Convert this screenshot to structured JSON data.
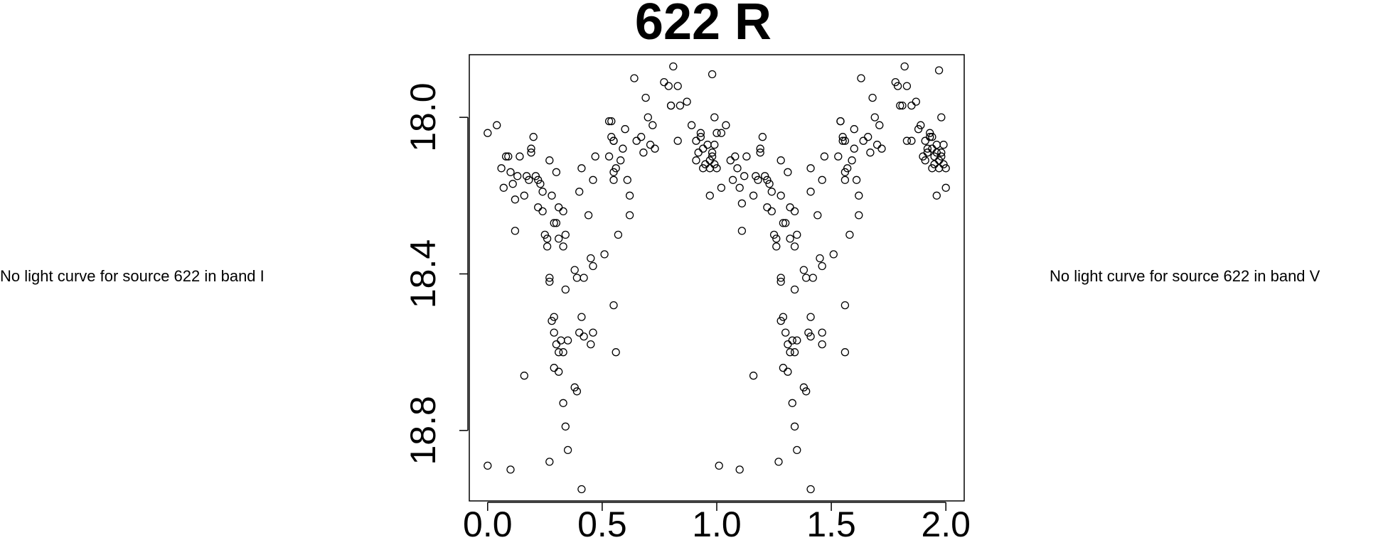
{
  "notes": {
    "left": "No light curve for source 622 in band I",
    "right": "No light curve for source 622 in band V"
  },
  "chart_data": {
    "type": "scatter",
    "title": "622 R",
    "xlabel": "",
    "ylabel": "",
    "xlim": [
      -0.08,
      2.08
    ],
    "ylim": [
      18.98,
      17.84
    ],
    "y_reversed": true,
    "grid": false,
    "marker": "open-circle",
    "x_ticks": [
      {
        "value": 0.0,
        "label": "0.0"
      },
      {
        "value": 0.5,
        "label": "0.5"
      },
      {
        "value": 1.0,
        "label": "1.0"
      },
      {
        "value": 1.5,
        "label": "1.5"
      },
      {
        "value": 2.0,
        "label": "2.0"
      }
    ],
    "y_ticks": [
      {
        "value": 18.0,
        "label": "18.0"
      },
      {
        "value": 18.4,
        "label": "18.4"
      },
      {
        "value": 18.8,
        "label": "18.8"
      }
    ],
    "points": [
      [
        0.0,
        18.04
      ],
      [
        0.04,
        18.02
      ],
      [
        0.06,
        18.13
      ],
      [
        0.07,
        18.18
      ],
      [
        0.08,
        18.1
      ],
      [
        0.09,
        18.1
      ],
      [
        0.1,
        18.14
      ],
      [
        0.11,
        18.17
      ],
      [
        0.12,
        18.21
      ],
      [
        0.12,
        18.29
      ],
      [
        0.13,
        18.15
      ],
      [
        0.14,
        18.1
      ],
      [
        0.16,
        18.2
      ],
      [
        0.17,
        18.15
      ],
      [
        0.18,
        18.16
      ],
      [
        0.19,
        18.09
      ],
      [
        0.19,
        18.08
      ],
      [
        0.2,
        18.05
      ],
      [
        0.21,
        18.15
      ],
      [
        0.22,
        18.23
      ],
      [
        0.22,
        18.16
      ],
      [
        0.23,
        18.17
      ],
      [
        0.24,
        18.24
      ],
      [
        0.24,
        18.19
      ],
      [
        0.25,
        18.3
      ],
      [
        0.26,
        18.31
      ],
      [
        0.26,
        18.33
      ],
      [
        0.27,
        18.11
      ],
      [
        0.28,
        18.2
      ],
      [
        0.29,
        18.27
      ],
      [
        0.3,
        18.27
      ],
      [
        0.3,
        18.14
      ],
      [
        0.31,
        18.23
      ],
      [
        0.31,
        18.31
      ],
      [
        0.33,
        18.24
      ],
      [
        0.33,
        18.33
      ],
      [
        0.34,
        18.3
      ],
      [
        0.27,
        18.42
      ],
      [
        0.27,
        18.41
      ],
      [
        0.28,
        18.52
      ],
      [
        0.29,
        18.51
      ],
      [
        0.29,
        18.55
      ],
      [
        0.3,
        18.58
      ],
      [
        0.31,
        18.6
      ],
      [
        0.32,
        18.57
      ],
      [
        0.33,
        18.6
      ],
      [
        0.34,
        18.44
      ],
      [
        0.35,
        18.57
      ],
      [
        0.38,
        18.39
      ],
      [
        0.39,
        18.41
      ],
      [
        0.4,
        18.55
      ],
      [
        0.41,
        18.51
      ],
      [
        0.42,
        18.56
      ],
      [
        0.42,
        18.41
      ],
      [
        0.45,
        18.36
      ],
      [
        0.46,
        18.38
      ],
      [
        0.45,
        18.58
      ],
      [
        0.46,
        18.55
      ],
      [
        0.29,
        18.64
      ],
      [
        0.31,
        18.65
      ],
      [
        0.33,
        18.73
      ],
      [
        0.34,
        18.79
      ],
      [
        0.35,
        18.85
      ],
      [
        0.39,
        18.7
      ],
      [
        0.41,
        18.95
      ],
      [
        0.16,
        18.66
      ],
      [
        0.0,
        18.89
      ],
      [
        0.1,
        18.9
      ],
      [
        0.27,
        18.88
      ],
      [
        0.38,
        18.69
      ],
      [
        0.4,
        18.19
      ],
      [
        0.41,
        18.13
      ],
      [
        0.44,
        18.25
      ],
      [
        0.46,
        18.16
      ],
      [
        0.47,
        18.1
      ],
      [
        0.51,
        18.35
      ],
      [
        0.53,
        18.1
      ],
      [
        0.53,
        18.01
      ],
      [
        0.54,
        18.01
      ],
      [
        0.54,
        18.05
      ],
      [
        0.55,
        18.06
      ],
      [
        0.55,
        18.06
      ],
      [
        0.55,
        18.16
      ],
      [
        0.55,
        18.14
      ],
      [
        0.56,
        18.13
      ],
      [
        0.57,
        18.3
      ],
      [
        0.58,
        18.11
      ],
      [
        0.59,
        18.08
      ],
      [
        0.6,
        18.03
      ],
      [
        0.61,
        18.16
      ],
      [
        0.62,
        18.2
      ],
      [
        0.62,
        18.25
      ],
      [
        0.64,
        17.9
      ],
      [
        0.65,
        18.06
      ],
      [
        0.67,
        18.05
      ],
      [
        0.68,
        18.09
      ],
      [
        0.69,
        17.95
      ],
      [
        0.7,
        18.0
      ],
      [
        0.71,
        18.07
      ],
      [
        0.72,
        18.02
      ],
      [
        0.73,
        18.08
      ],
      [
        0.55,
        18.48
      ],
      [
        0.56,
        18.6
      ],
      [
        0.77,
        17.91
      ],
      [
        0.79,
        17.92
      ],
      [
        0.8,
        17.97
      ],
      [
        0.8,
        17.97
      ],
      [
        0.81,
        17.87
      ],
      [
        0.83,
        18.06
      ],
      [
        0.83,
        17.92
      ],
      [
        0.84,
        17.97
      ],
      [
        0.87,
        17.96
      ],
      [
        0.89,
        18.02
      ],
      [
        0.91,
        18.06
      ],
      [
        0.91,
        18.11
      ],
      [
        0.92,
        18.09
      ],
      [
        0.93,
        18.04
      ],
      [
        0.93,
        18.05
      ],
      [
        0.94,
        18.13
      ],
      [
        0.94,
        18.08
      ],
      [
        0.95,
        18.12
      ],
      [
        0.96,
        18.07
      ],
      [
        0.97,
        18.11
      ],
      [
        0.97,
        18.13
      ],
      [
        0.97,
        18.2
      ],
      [
        0.98,
        18.09
      ],
      [
        0.98,
        18.1
      ],
      [
        0.99,
        18.07
      ],
      [
        0.99,
        18.12
      ],
      [
        1.0,
        18.13
      ],
      [
        1.0,
        18.04
      ],
      [
        0.99,
        18.0
      ],
      [
        0.98,
        17.89
      ],
      [
        1.02,
        18.04
      ],
      [
        1.02,
        18.18
      ],
      [
        1.04,
        18.02
      ],
      [
        1.06,
        18.11
      ],
      [
        1.07,
        18.16
      ],
      [
        1.08,
        18.1
      ],
      [
        1.09,
        18.13
      ],
      [
        1.1,
        18.18
      ],
      [
        1.11,
        18.22
      ],
      [
        1.11,
        18.29
      ],
      [
        1.12,
        18.15
      ],
      [
        1.13,
        18.1
      ],
      [
        1.16,
        18.2
      ],
      [
        1.17,
        18.15
      ],
      [
        1.18,
        18.16
      ],
      [
        1.19,
        18.09
      ],
      [
        1.19,
        18.08
      ],
      [
        1.2,
        18.05
      ],
      [
        1.21,
        18.15
      ],
      [
        1.22,
        18.23
      ],
      [
        1.22,
        18.16
      ],
      [
        1.23,
        18.17
      ],
      [
        1.24,
        18.24
      ],
      [
        1.24,
        18.19
      ],
      [
        1.25,
        18.3
      ],
      [
        1.26,
        18.31
      ],
      [
        1.26,
        18.33
      ],
      [
        1.28,
        18.11
      ],
      [
        1.28,
        18.2
      ],
      [
        1.29,
        18.27
      ],
      [
        1.3,
        18.27
      ],
      [
        1.31,
        18.14
      ],
      [
        1.32,
        18.23
      ],
      [
        1.32,
        18.31
      ],
      [
        1.34,
        18.24
      ],
      [
        1.34,
        18.33
      ],
      [
        1.35,
        18.3
      ],
      [
        1.28,
        18.42
      ],
      [
        1.28,
        18.41
      ],
      [
        1.28,
        18.52
      ],
      [
        1.29,
        18.51
      ],
      [
        1.3,
        18.55
      ],
      [
        1.31,
        18.58
      ],
      [
        1.32,
        18.6
      ],
      [
        1.33,
        18.57
      ],
      [
        1.34,
        18.6
      ],
      [
        1.34,
        18.44
      ],
      [
        1.35,
        18.57
      ],
      [
        1.38,
        18.39
      ],
      [
        1.39,
        18.41
      ],
      [
        1.4,
        18.55
      ],
      [
        1.41,
        18.51
      ],
      [
        1.41,
        18.56
      ],
      [
        1.42,
        18.41
      ],
      [
        1.45,
        18.36
      ],
      [
        1.46,
        18.38
      ],
      [
        1.46,
        18.58
      ],
      [
        1.46,
        18.55
      ],
      [
        1.29,
        18.64
      ],
      [
        1.31,
        18.65
      ],
      [
        1.33,
        18.73
      ],
      [
        1.34,
        18.79
      ],
      [
        1.35,
        18.85
      ],
      [
        1.39,
        18.7
      ],
      [
        1.41,
        18.95
      ],
      [
        1.16,
        18.66
      ],
      [
        1.01,
        18.89
      ],
      [
        1.1,
        18.9
      ],
      [
        1.27,
        18.88
      ],
      [
        1.38,
        18.69
      ],
      [
        1.41,
        18.19
      ],
      [
        1.41,
        18.13
      ],
      [
        1.44,
        18.25
      ],
      [
        1.46,
        18.16
      ],
      [
        1.47,
        18.1
      ],
      [
        1.51,
        18.35
      ],
      [
        1.53,
        18.1
      ],
      [
        1.54,
        18.01
      ],
      [
        1.54,
        18.01
      ],
      [
        1.55,
        18.05
      ],
      [
        1.56,
        18.06
      ],
      [
        1.55,
        18.06
      ],
      [
        1.56,
        18.16
      ],
      [
        1.56,
        18.14
      ],
      [
        1.57,
        18.13
      ],
      [
        1.58,
        18.3
      ],
      [
        1.59,
        18.11
      ],
      [
        1.6,
        18.08
      ],
      [
        1.6,
        18.03
      ],
      [
        1.61,
        18.16
      ],
      [
        1.62,
        18.2
      ],
      [
        1.62,
        18.25
      ],
      [
        1.63,
        17.9
      ],
      [
        1.64,
        18.06
      ],
      [
        1.66,
        18.05
      ],
      [
        1.67,
        18.09
      ],
      [
        1.68,
        17.95
      ],
      [
        1.69,
        18.0
      ],
      [
        1.7,
        18.07
      ],
      [
        1.71,
        18.02
      ],
      [
        1.72,
        18.08
      ],
      [
        1.56,
        18.48
      ],
      [
        1.56,
        18.6
      ],
      [
        1.78,
        17.91
      ],
      [
        1.79,
        17.92
      ],
      [
        1.81,
        17.97
      ],
      [
        1.8,
        17.97
      ],
      [
        1.82,
        17.87
      ],
      [
        1.83,
        18.06
      ],
      [
        1.83,
        17.92
      ],
      [
        1.85,
        17.97
      ],
      [
        1.87,
        17.96
      ],
      [
        1.89,
        18.02
      ],
      [
        1.91,
        18.06
      ],
      [
        1.91,
        18.11
      ],
      [
        1.92,
        18.09
      ],
      [
        1.93,
        18.04
      ],
      [
        1.93,
        18.05
      ],
      [
        1.94,
        18.13
      ],
      [
        1.94,
        18.08
      ],
      [
        1.95,
        18.12
      ],
      [
        1.96,
        18.07
      ],
      [
        1.97,
        18.11
      ],
      [
        1.97,
        18.13
      ],
      [
        1.96,
        18.2
      ],
      [
        1.98,
        18.09
      ],
      [
        1.98,
        18.1
      ],
      [
        1.99,
        18.07
      ],
      [
        1.99,
        18.12
      ],
      [
        2.0,
        18.13
      ],
      [
        2.0,
        18.18
      ],
      [
        1.98,
        18.0
      ],
      [
        1.97,
        17.88
      ],
      [
        1.95,
        18.1
      ],
      [
        1.96,
        18.09
      ],
      [
        1.94,
        18.05
      ],
      [
        1.92,
        18.08
      ],
      [
        1.9,
        18.1
      ],
      [
        1.88,
        18.03
      ],
      [
        1.85,
        18.06
      ]
    ]
  }
}
